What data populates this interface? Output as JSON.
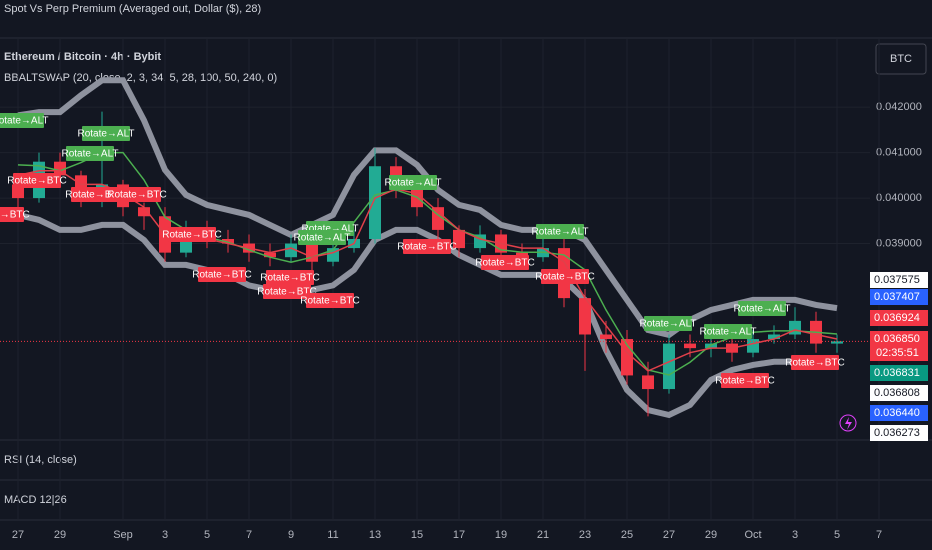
{
  "top_bar": {
    "title": "Spot Vs Perp Premium (Averaged out, Dollar ($), 28)",
    "symbol_button": "BTC"
  },
  "chart_data": {
    "type": "candlestick",
    "title": "Ethereum / Bitcoin · 4h · Bybit",
    "indicator": "BBALTSWAP (20, close, 2, 3, 34, 5, 28, 100, 50, 240, 0)",
    "categories": [
      "27",
      null,
      "29",
      null,
      null,
      "Sep",
      null,
      "3",
      null,
      "5",
      null,
      "7",
      null,
      "9",
      null,
      "11",
      null,
      "13",
      null,
      "15",
      null,
      "17",
      null,
      "19",
      null,
      "21",
      null,
      "23",
      null,
      "25",
      null,
      "27",
      null,
      "29",
      null,
      "Oct",
      null,
      "3",
      null,
      "5",
      null,
      "7"
    ],
    "open": [
      0.0403,
      0.04,
      0.0408,
      0.0405,
      0.04,
      0.0403,
      0.0398,
      0.0396,
      0.0388,
      0.0393,
      0.0391,
      0.039,
      0.0388,
      0.0387,
      0.039,
      0.0386,
      0.0389,
      0.0391,
      0.0407,
      0.0402,
      0.0398,
      0.0393,
      0.0389,
      0.0392,
      0.0388,
      0.0387,
      0.0389,
      0.0378,
      0.037,
      0.0369,
      0.0361,
      0.0358,
      0.0368,
      0.0367,
      0.0368,
      0.0366,
      0.0369,
      0.037,
      0.0373,
      0.0368,
      null,
      null
    ],
    "high": [
      0.0405,
      0.041,
      0.041,
      0.0406,
      0.0419,
      0.0404,
      0.0399,
      0.0398,
      0.0395,
      0.0395,
      0.0393,
      0.0392,
      0.039,
      0.0392,
      0.0391,
      0.0391,
      0.0393,
      0.0411,
      0.0409,
      0.0403,
      0.04,
      0.0394,
      0.0394,
      0.0393,
      0.039,
      0.0391,
      0.0391,
      0.038,
      0.0373,
      0.0371,
      0.0364,
      0.037,
      0.037,
      0.037,
      0.0369,
      0.0371,
      0.0372,
      0.0376,
      0.0375,
      0.037,
      null,
      null
    ],
    "low": [
      0.0398,
      0.0399,
      0.0403,
      0.0398,
      0.0398,
      0.0396,
      0.0393,
      0.0386,
      0.0387,
      0.0389,
      0.0388,
      0.0386,
      0.0385,
      0.0386,
      0.0384,
      0.0385,
      0.0388,
      0.039,
      0.04,
      0.0396,
      0.0391,
      0.0387,
      0.0388,
      0.0386,
      0.0385,
      0.0386,
      0.0376,
      0.0362,
      0.0366,
      0.0359,
      0.0352,
      0.0357,
      0.0365,
      0.0365,
      0.0364,
      0.0365,
      0.0368,
      0.0369,
      0.0366,
      0.0366,
      null,
      null
    ],
    "close": [
      0.04,
      0.0408,
      0.0405,
      0.04,
      0.0403,
      0.0398,
      0.0396,
      0.0388,
      0.0393,
      0.0391,
      0.039,
      0.0388,
      0.0387,
      0.039,
      0.0386,
      0.0389,
      0.0391,
      0.0407,
      0.0402,
      0.0398,
      0.0393,
      0.0389,
      0.0392,
      0.0388,
      0.0387,
      0.0389,
      0.0378,
      0.037,
      0.0369,
      0.0361,
      0.0358,
      0.0368,
      0.0367,
      0.0368,
      0.0366,
      0.0369,
      0.037,
      0.0373,
      0.0368,
      0.03685,
      null,
      null
    ],
    "up_color": "#22ab94",
    "down_color": "#f23645",
    "series": [
      {
        "role": "upper",
        "color": "#8e929e",
        "values": [
          0.04182,
          0.04189,
          0.04189,
          0.04226,
          0.04259,
          0.04259,
          0.04171,
          0.04062,
          0.04007,
          0.03985,
          0.03974,
          0.03963,
          0.03941,
          0.03919,
          0.03941,
          0.03963,
          0.04051,
          0.04105,
          0.04105,
          0.04073,
          0.04018,
          0.03985,
          0.03974,
          0.03941,
          0.0393,
          0.0393,
          0.0393,
          0.03908,
          0.03842,
          0.03776,
          0.0371,
          0.03699,
          0.03732,
          0.03754,
          0.03765,
          0.03776,
          0.03776,
          0.03776,
          0.03765,
          0.03758,
          null,
          null
        ]
      },
      {
        "role": "lower",
        "color": "#8e929e",
        "values": [
          0.03963,
          0.03952,
          0.0393,
          0.0393,
          0.03941,
          0.03941,
          0.03908,
          0.03853,
          0.03853,
          0.03842,
          0.03831,
          0.03808,
          0.03798,
          0.03798,
          0.03798,
          0.03808,
          0.03842,
          0.03908,
          0.0393,
          0.0393,
          0.03908,
          0.03875,
          0.03853,
          0.03831,
          0.03831,
          0.03831,
          0.0382,
          0.03776,
          0.03666,
          0.03578,
          0.03534,
          0.03523,
          0.03545,
          0.036,
          0.03622,
          0.03633,
          0.0364,
          0.0364,
          0.03644,
          0.03644,
          null,
          null
        ]
      },
      {
        "role": "basis",
        "color": "#4caf50",
        "values": [
          0.04073,
          0.04071,
          0.0406,
          0.04078,
          0.041,
          0.041,
          0.0404,
          0.03958,
          0.0393,
          0.03914,
          0.03903,
          0.03886,
          0.0387,
          0.03859,
          0.0387,
          0.03886,
          0.03947,
          0.04007,
          0.04018,
          0.04002,
          0.03963,
          0.0393,
          0.03914,
          0.03886,
          0.03881,
          0.03881,
          0.03875,
          0.03842,
          0.03754,
          0.03677,
          0.03622,
          0.03611,
          0.03639,
          0.03677,
          0.03694,
          0.03705,
          0.03708,
          0.03708,
          0.03705,
          0.03701,
          null,
          null
        ]
      },
      {
        "role": "fast",
        "color": "#e0404a",
        "values": [
          0.0405,
          0.0406,
          0.0406,
          0.0403,
          0.0403,
          0.0401,
          0.0398,
          0.0392,
          0.0392,
          0.0391,
          0.039,
          0.0389,
          0.0388,
          0.0389,
          0.0387,
          0.0388,
          0.039,
          0.04,
          0.0402,
          0.0401,
          0.0397,
          0.0393,
          0.0391,
          0.039,
          0.0389,
          0.0389,
          0.0386,
          0.0378,
          0.0372,
          0.0366,
          0.0362,
          0.0364,
          0.0366,
          0.0367,
          0.0367,
          0.0368,
          0.0369,
          0.0371,
          0.037,
          0.0369,
          null,
          null
        ]
      }
    ],
    "ylim": [
      0.03468,
      0.04352
    ],
    "yticks": [
      {
        "value": 0.039,
        "label": "0.039000"
      },
      {
        "value": 0.04,
        "label": "0.040000"
      },
      {
        "value": 0.041,
        "label": "0.041000"
      },
      {
        "value": 0.042,
        "label": "0.042000"
      }
    ],
    "grid": true,
    "signals": [
      {
        "text": "Rotate→ALT",
        "color": "#4caf50"
      },
      {
        "text": "Rotate→ALT",
        "color": "#4caf50"
      },
      {
        "text": "Rotate→ALT",
        "color": "#4caf50"
      },
      {
        "text": "Rotate→ALT",
        "color": "#4caf50"
      },
      {
        "text": "Rotate→ALT",
        "color": "#4caf50"
      },
      {
        "text": "Rotate→ALT",
        "color": "#4caf50"
      },
      {
        "text": "Rotate→ALT",
        "color": "#4caf50"
      },
      {
        "text": "Rotate→ALT",
        "color": "#4caf50"
      },
      {
        "text": "Rotate→ALT",
        "color": "#4caf50"
      },
      {
        "text": "Rotate→ALT",
        "color": "#4caf50"
      },
      {
        "text": "Rotate→BTC",
        "color": "#f23645"
      },
      {
        "text": "Rotate→BTC",
        "color": "#f23645"
      },
      {
        "text": "Rotate→BTC",
        "color": "#f23645"
      },
      {
        "text": "Rotate→BTC",
        "color": "#f23645"
      },
      {
        "text": "Rotate→BTC",
        "color": "#f23645"
      },
      {
        "text": "Rotate→BTC",
        "color": "#f23645"
      },
      {
        "text": "Rotate→BTC",
        "color": "#f23645"
      },
      {
        "text": "Rotate→BTC",
        "color": "#f23645"
      },
      {
        "text": "Rotate→BTC",
        "color": "#f23645"
      },
      {
        "text": "Rotate→BTC",
        "color": "#f23645"
      },
      {
        "text": "Rotate→BTC",
        "color": "#f23645"
      },
      {
        "text": "Rotate→BTC",
        "color": "#f23645"
      },
      {
        "text": "Rotate→BTC",
        "color": "#f23645"
      },
      {
        "text": "Rotate→BTC",
        "color": "#f23645"
      }
    ],
    "price_tags": [
      {
        "label": "0.037575",
        "color": "#ffffff"
      },
      {
        "label": "0.037407",
        "color": "#2962ff"
      },
      {
        "label": "0.036924",
        "color": "#f23645"
      },
      {
        "label": "0.036850",
        "color": "#f23645",
        "countdown": "02:35:51"
      },
      {
        "label": "0.036831",
        "color": "#089981"
      },
      {
        "label": "0.036808",
        "color": "#ffffff"
      },
      {
        "label": "0.036440",
        "color": "#2962ff"
      },
      {
        "label": "0.036273",
        "color": "#ffffff"
      }
    ]
  },
  "panes": {
    "rsi": "RSI (14, close)",
    "macd": "MACD 12|26"
  }
}
